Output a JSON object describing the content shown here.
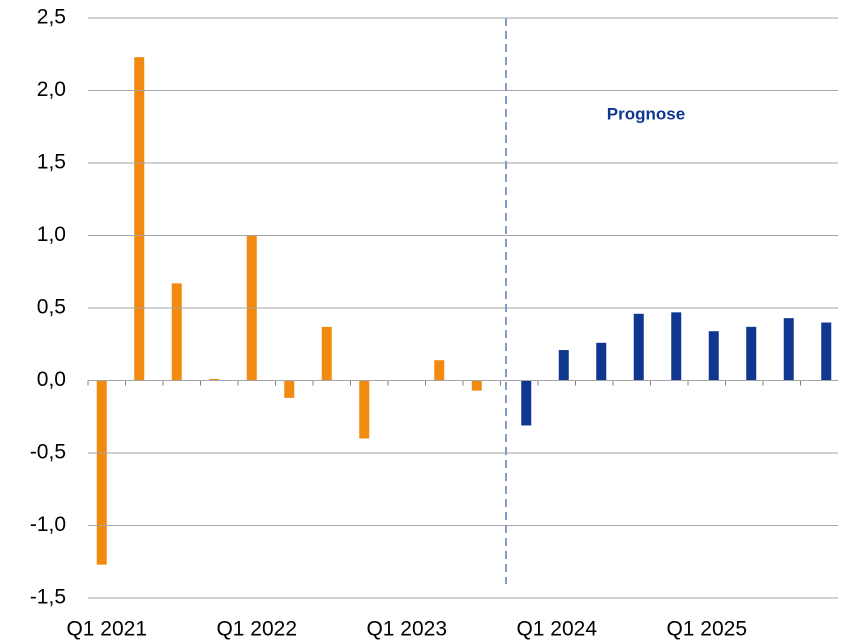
{
  "chart_data": {
    "type": "bar",
    "annotations": [
      "Prognose"
    ],
    "categories": [
      "Q1 2021",
      null,
      null,
      null,
      "Q1 2022",
      null,
      null,
      null,
      "Q1 2023",
      null,
      null,
      null,
      "Q1 2024",
      null,
      null,
      null,
      "Q1 2025",
      null,
      null,
      null
    ],
    "series": [
      {
        "color": "#f28a0f",
        "values": [
          -1.27,
          2.23,
          0.67,
          0.01,
          1.0,
          -0.12,
          0.37,
          -0.4,
          null,
          0.14,
          -0.07,
          null,
          null,
          null,
          null,
          null,
          null,
          null,
          null,
          null
        ]
      },
      {
        "color": "#10378f",
        "values": [
          null,
          null,
          null,
          null,
          null,
          null,
          null,
          null,
          null,
          null,
          null,
          -0.31,
          0.21,
          0.26,
          0.46,
          0.47,
          0.34,
          0.37,
          0.43,
          0.4
        ]
      }
    ],
    "ylim": [
      -1.5,
      2.5
    ],
    "yticks": [
      {
        "value": -1.5,
        "label": "-1,5"
      },
      {
        "value": -1.0,
        "label": "-1,0"
      },
      {
        "value": -0.5,
        "label": "-0,5"
      },
      {
        "value": 0.0,
        "label": "0,0"
      },
      {
        "value": 0.5,
        "label": "0,5"
      },
      {
        "value": 1.0,
        "label": "1,0"
      },
      {
        "value": 1.5,
        "label": "1,5"
      },
      {
        "value": 2.0,
        "label": "2,0"
      },
      {
        "value": 2.5,
        "label": "2,5"
      }
    ],
    "grid": true
  }
}
